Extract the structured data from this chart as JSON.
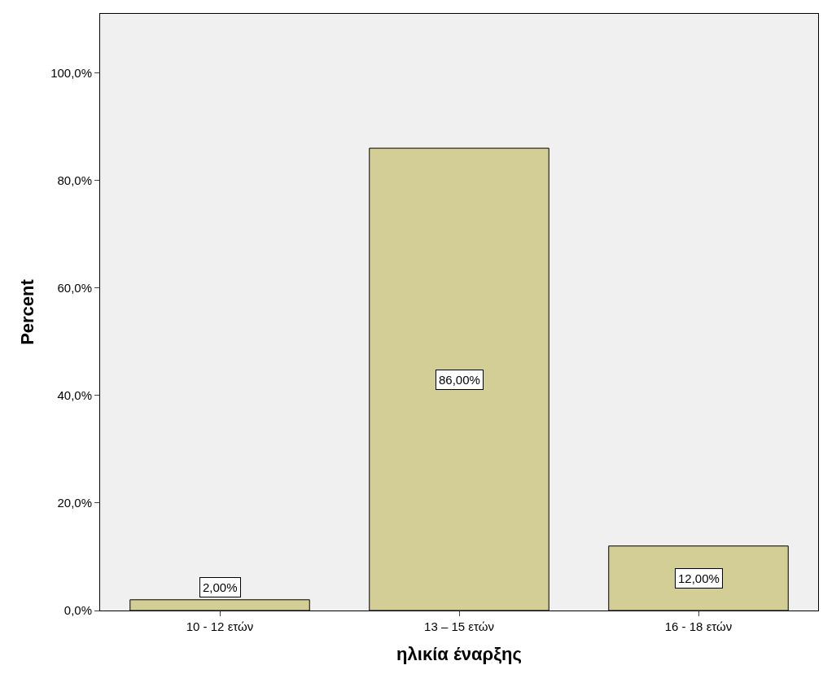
{
  "chart_data": {
    "type": "bar",
    "xlabel": "ηλικία έναρξης",
    "ylabel": "Percent",
    "categories": [
      "10 - 12 ετών",
      "13 – 15 ετών",
      "16 - 18 ετών"
    ],
    "values": [
      2,
      86,
      12
    ],
    "value_labels": [
      "2,00%",
      "86,00%",
      "12,00%"
    ],
    "color": "#d3cd96",
    "ylim": [
      0,
      111
    ],
    "yticks": [
      {
        "value": 0,
        "label": "0,0%"
      },
      {
        "value": 20,
        "label": "20,0%"
      },
      {
        "value": 40,
        "label": "40,0%"
      },
      {
        "value": 60,
        "label": "60,0%"
      },
      {
        "value": 80,
        "label": "80,0%"
      },
      {
        "value": 100,
        "label": "100,0%"
      }
    ],
    "grid": false
  }
}
